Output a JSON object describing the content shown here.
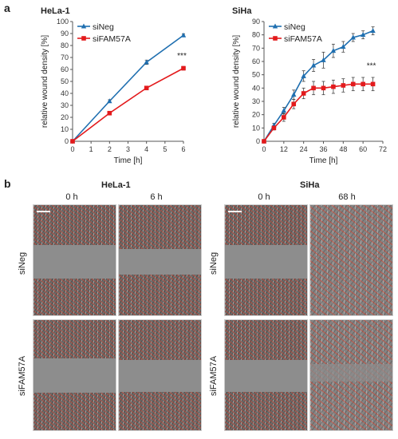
{
  "panel_a_label": "a",
  "panel_b_label": "b",
  "colors": {
    "siNeg": "#1f6fb0",
    "siFAM57A": "#e31a1c",
    "axis": "#555555"
  },
  "chart_data": [
    {
      "type": "line",
      "title": "HeLa-1",
      "xlabel": "Time [h]",
      "ylabel": "relative wound density [%]",
      "xlim": [
        0,
        6
      ],
      "ylim": [
        0,
        100
      ],
      "xticks": [
        0,
        1,
        2,
        3,
        4,
        5,
        6
      ],
      "yticks": [
        0,
        10,
        20,
        30,
        40,
        50,
        60,
        70,
        80,
        90,
        100
      ],
      "x": [
        0,
        2,
        4,
        6
      ],
      "series": [
        {
          "name": "siNeg",
          "marker": "triangle",
          "values": [
            0,
            33.5,
            66,
            88.5
          ],
          "errors": [
            0,
            1.2,
            1.8,
            1.2
          ]
        },
        {
          "name": "siFAM57A",
          "marker": "square",
          "values": [
            0,
            23.5,
            44.5,
            61
          ],
          "errors": [
            0,
            0.8,
            1,
            1.5
          ]
        }
      ],
      "legend": "top-left",
      "annotations": [
        {
          "text": "***",
          "x": 6
        }
      ]
    },
    {
      "type": "line",
      "title": "SiHa",
      "xlabel": "Time [h]",
      "ylabel": "relative wound density [%]",
      "xlim": [
        0,
        72
      ],
      "ylim": [
        0,
        90
      ],
      "xticks": [
        0,
        12,
        24,
        36,
        48,
        60,
        72
      ],
      "yticks": [
        0,
        10,
        20,
        30,
        40,
        50,
        60,
        70,
        80,
        90
      ],
      "x": [
        0,
        6,
        12,
        18,
        24,
        30,
        36,
        42,
        48,
        54,
        60,
        66
      ],
      "series": [
        {
          "name": "siNeg",
          "marker": "triangle",
          "values": [
            0,
            12,
            23,
            35,
            49,
            57,
            61,
            68,
            71,
            78,
            80,
            83
          ],
          "errors": [
            0,
            1.5,
            2.5,
            3.5,
            4,
            4.5,
            6,
            5,
            4,
            3,
            3,
            3
          ]
        },
        {
          "name": "siFAM57A",
          "marker": "square",
          "values": [
            0,
            10,
            18,
            28,
            36,
            40,
            40,
            41,
            42,
            43,
            43,
            43
          ],
          "errors": [
            0,
            1.5,
            3,
            3.5,
            4,
            5,
            5,
            5,
            5,
            5,
            5,
            5
          ]
        }
      ],
      "legend": "top-left",
      "annotations": [
        {
          "text": "***",
          "x": 66
        }
      ]
    }
  ],
  "panel_b": {
    "hela_title": "HeLa-1",
    "siha_title": "SiHa",
    "hela_times": [
      "0 h",
      "6 h"
    ],
    "siha_times": [
      "0 h",
      "68 h"
    ],
    "row_labels": [
      "siNeg",
      "siFAM57A"
    ]
  }
}
